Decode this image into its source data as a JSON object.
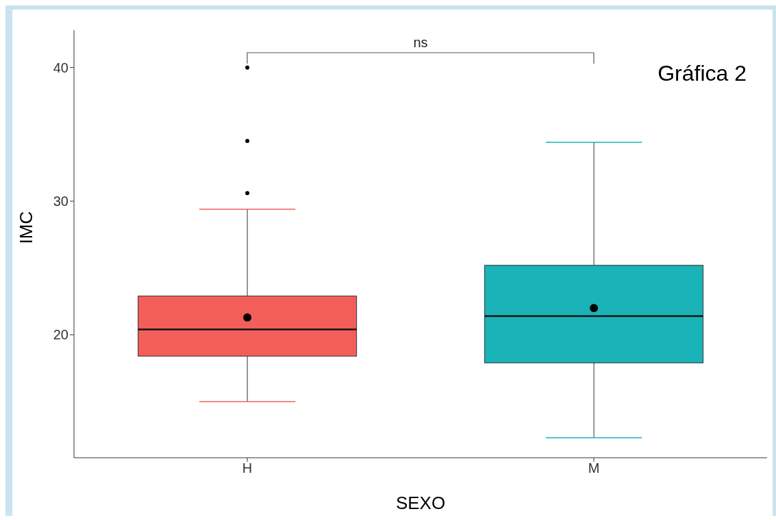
{
  "chart_data": {
    "type": "box",
    "xlabel": "SEXO",
    "ylabel": "IMC",
    "categories": [
      "H",
      "M"
    ],
    "colors": [
      "#f25f5a",
      "#1ab3b8"
    ],
    "boxes": [
      {
        "low": 15.0,
        "q1": 18.4,
        "median": 20.4,
        "q3": 22.9,
        "high": 29.4,
        "mean": 21.3,
        "outliers": [
          30.6,
          34.5,
          40.0
        ]
      },
      {
        "low": 12.3,
        "q1": 17.9,
        "median": 21.4,
        "q3": 25.2,
        "high": 34.4,
        "mean": 22.0
      }
    ],
    "ylim": [
      10.8,
      42.8
    ],
    "yticks": [
      20,
      30,
      40
    ],
    "annotations": [
      "ns",
      "Gráfica 2"
    ]
  }
}
